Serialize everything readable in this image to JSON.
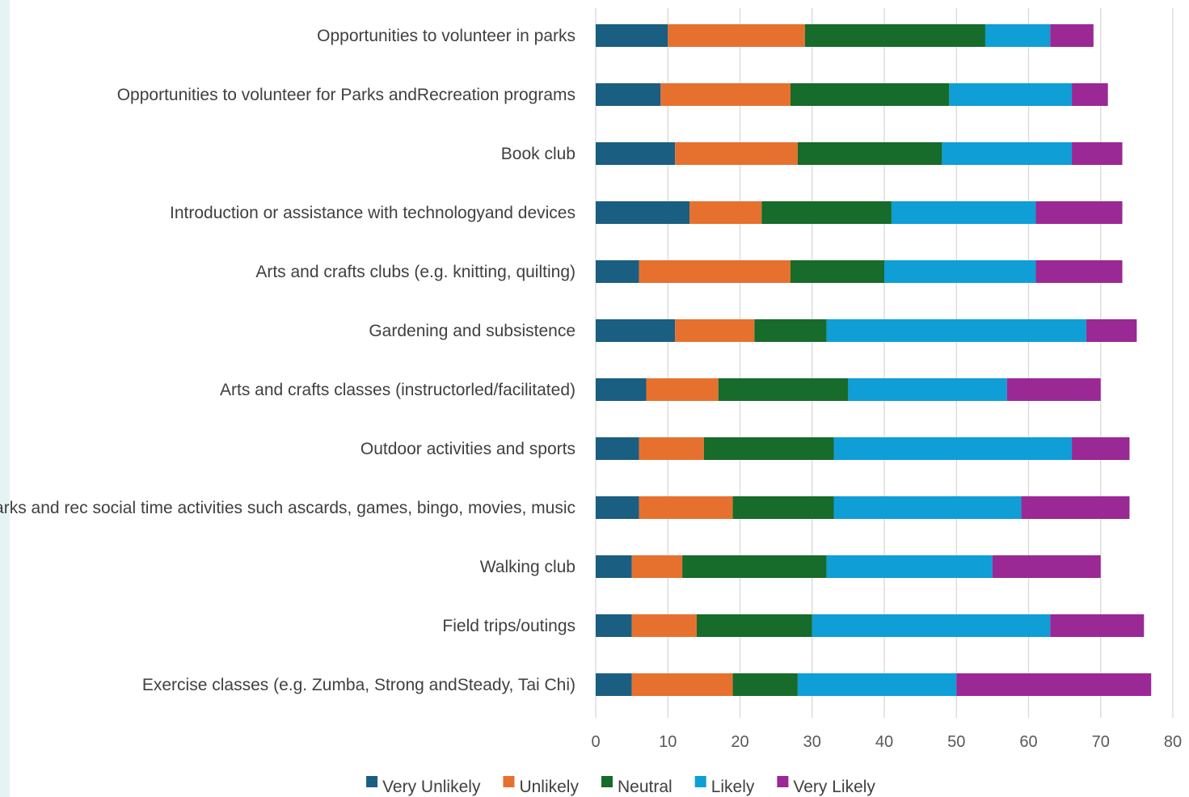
{
  "colors": {
    "background_strip": "#e6f3f5",
    "gridline": "#d9d9d9",
    "axis_text": "#595959",
    "label_text": "#404040"
  },
  "chart_data": {
    "type": "bar",
    "orientation": "horizontal",
    "stacked": true,
    "title": "",
    "xlabel": "",
    "ylabel": "",
    "xlim": [
      0,
      80
    ],
    "xticks": [
      0,
      10,
      20,
      30,
      40,
      50,
      60,
      70,
      80
    ],
    "grid": true,
    "legend_position": "bottom",
    "categories": [
      "Opportunities to volunteer in parks",
      "Opportunities to volunteer for Parks andRecreation programs",
      "Book club",
      "Introduction or assistance with technologyand devices",
      "Arts and crafts clubs (e.g. knitting, quilting)",
      "Gardening and subsistence",
      "Arts and crafts classes (instructorled/facilitated)",
      "Outdoor activities and sports",
      "Parks and rec social time activities such ascards, games, bingo, movies, music",
      "Walking club",
      "Field trips/outings",
      "Exercise classes (e.g. Zumba, Strong andSteady, Tai Chi)"
    ],
    "series": [
      {
        "name": "Very Unlikely",
        "color": "#1a5e82",
        "values": [
          10,
          9,
          11,
          13,
          6,
          11,
          7,
          6,
          6,
          5,
          5,
          5
        ]
      },
      {
        "name": "Unlikely",
        "color": "#e6712f",
        "values": [
          19,
          18,
          17,
          10,
          21,
          11,
          10,
          9,
          13,
          7,
          9,
          14
        ]
      },
      {
        "name": "Neutral",
        "color": "#176b2b",
        "values": [
          25,
          22,
          20,
          18,
          13,
          10,
          18,
          18,
          14,
          20,
          16,
          9
        ]
      },
      {
        "name": "Likely",
        "color": "#0f9ed5",
        "values": [
          9,
          17,
          18,
          20,
          21,
          36,
          22,
          33,
          26,
          23,
          33,
          22
        ]
      },
      {
        "name": "Very Likely",
        "color": "#9a2895",
        "values": [
          6,
          5,
          7,
          12,
          12,
          7,
          13,
          8,
          15,
          15,
          13,
          27
        ]
      }
    ]
  }
}
